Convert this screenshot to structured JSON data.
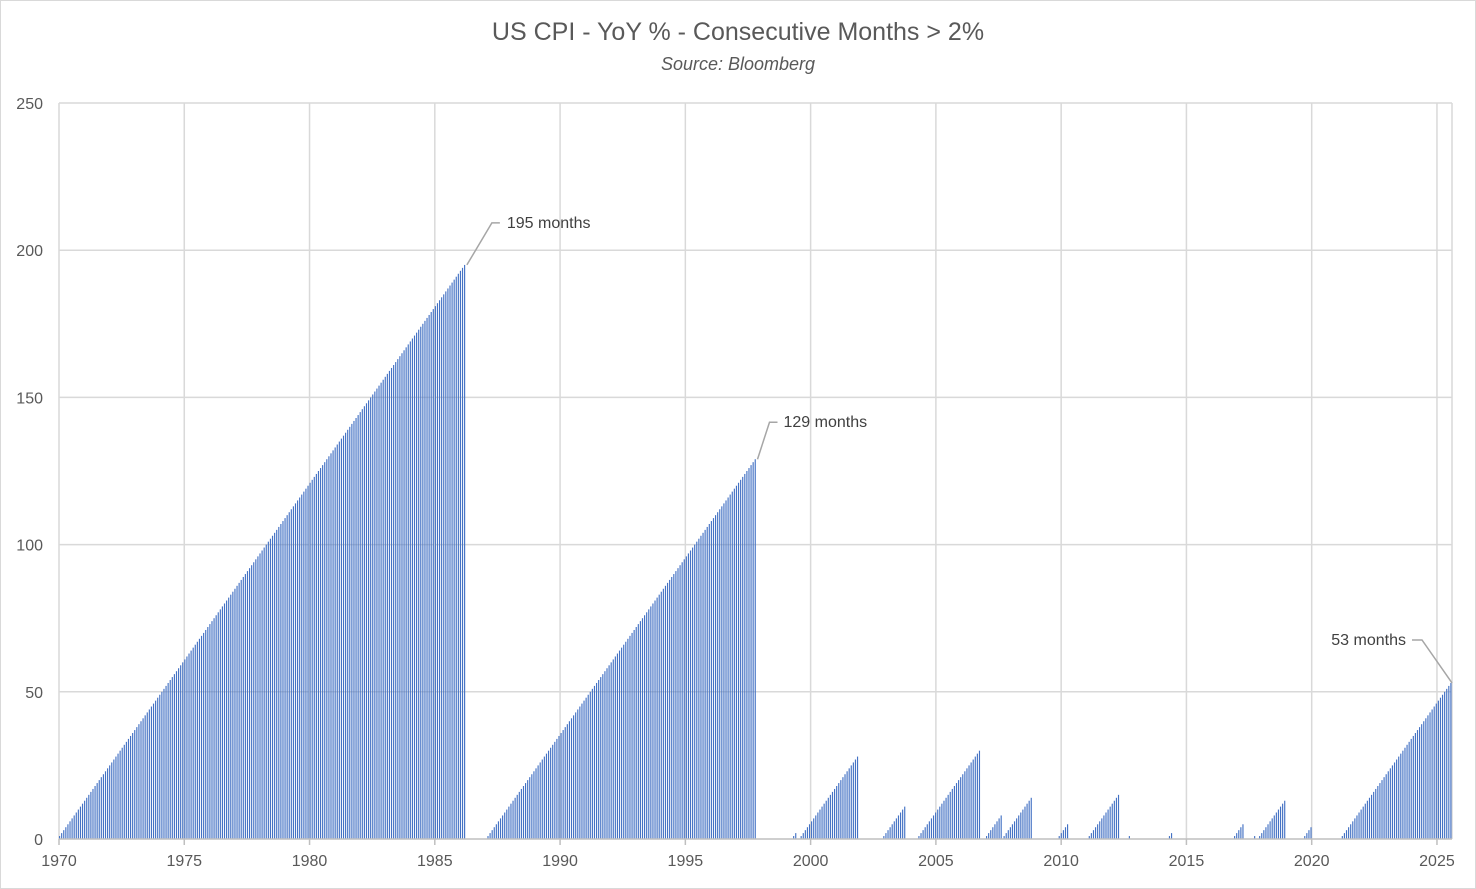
{
  "chart_data": {
    "type": "bar",
    "title": "US CPI - YoY % - Consecutive Months > 2%",
    "subtitle": "Source: Bloomberg",
    "xlabel": "",
    "ylabel": "",
    "xlim": [
      1970.0,
      2025.6
    ],
    "ylim": [
      0,
      250
    ],
    "x_ticks": [
      1970,
      1975,
      1980,
      1985,
      1990,
      1995,
      2000,
      2005,
      2010,
      2015,
      2020,
      2025
    ],
    "y_ticks": [
      0,
      50,
      100,
      150,
      200,
      250
    ],
    "grid": true,
    "bar_color": "#4472c4",
    "series": [
      {
        "values_description_runs": true,
        "runs": [
          {
            "start": 1970.0,
            "months": 195
          },
          {
            "start": 1987.1,
            "months": 129
          },
          {
            "start": 1999.3,
            "months": 2
          },
          {
            "start": 1999.6,
            "months": 28
          },
          {
            "start": 2002.9,
            "months": 11
          },
          {
            "start": 2004.3,
            "months": 30
          },
          {
            "start": 2007.0,
            "months": 8
          },
          {
            "start": 2007.7,
            "months": 14
          },
          {
            "start": 2009.9,
            "months": 5
          },
          {
            "start": 2011.1,
            "months": 15
          },
          {
            "start": 2012.7,
            "months": 1
          },
          {
            "start": 2014.3,
            "months": 2
          },
          {
            "start": 2016.9,
            "months": 5
          },
          {
            "start": 2017.7,
            "months": 1
          },
          {
            "start": 2017.9,
            "months": 13
          },
          {
            "start": 2019.7,
            "months": 4
          },
          {
            "start": 2021.2,
            "months": 53
          }
        ]
      }
    ],
    "annotations": [
      {
        "text": "195 months",
        "x": 1986.2,
        "y": 195
      },
      {
        "text": "129 months",
        "x": 1997.8,
        "y": 129
      },
      {
        "text": "53 months",
        "x": 2025.6,
        "y": 53
      }
    ]
  }
}
